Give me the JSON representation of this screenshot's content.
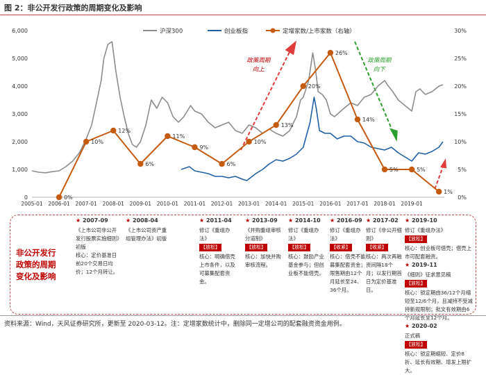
{
  "figure_title": "图 2：非公开发行政策的周期变化及影响",
  "chart_data": {
    "type": "line",
    "x_ticks": [
      "2005-01",
      "2006-01",
      "2007-01",
      "2008-01",
      "2009-01",
      "2010-01",
      "2011-01",
      "2012-01",
      "2013-01",
      "2014-01",
      "2015-01",
      "2016-01",
      "2017-01",
      "2018-01",
      "2019-01"
    ],
    "y_left": {
      "range": [
        0,
        6000
      ],
      "ticks": [
        "0",
        "1,000",
        "2,000",
        "3,000",
        "4,000",
        "5,000",
        "6,000"
      ]
    },
    "y_right": {
      "range": [
        0,
        30
      ],
      "ticks": [
        "0%",
        "5%",
        "10%",
        "15%",
        "20%",
        "25%",
        "30%"
      ]
    },
    "legend": [
      "沪深300",
      "创业板指",
      "定增家数/上市家数（右轴）"
    ],
    "series": [
      {
        "name": "沪深300",
        "axis": "left",
        "color": "#8c8c8c",
        "x": [
          2005.0,
          2005.25,
          2005.5,
          2005.75,
          2006.0,
          2006.25,
          2006.5,
          2006.75,
          2007.0,
          2007.2,
          2007.4,
          2007.55,
          2007.65,
          2007.8,
          2007.95,
          2008.1,
          2008.25,
          2008.4,
          2008.55,
          2008.7,
          2008.85,
          2009.0,
          2009.2,
          2009.4,
          2009.6,
          2009.8,
          2010.0,
          2010.2,
          2010.4,
          2010.6,
          2010.85,
          2011.0,
          2011.25,
          2011.5,
          2011.75,
          2012.0,
          2012.25,
          2012.5,
          2012.75,
          2013.0,
          2013.25,
          2013.5,
          2013.75,
          2014.0,
          2014.25,
          2014.5,
          2014.75,
          2014.9,
          2015.0,
          2015.2,
          2015.35,
          2015.45,
          2015.55,
          2015.7,
          2015.85,
          2016.0,
          2016.15,
          2016.5,
          2016.75,
          2017.0,
          2017.25,
          2017.5,
          2017.75,
          2018.0,
          2018.1,
          2018.3,
          2018.5,
          2018.75,
          2019.0,
          2019.15,
          2019.3,
          2019.5,
          2019.75,
          2020.0,
          2020.15
        ],
        "y": [
          950,
          900,
          880,
          920,
          950,
          1100,
          1300,
          1600,
          2100,
          2600,
          3500,
          4200,
          5000,
          5500,
          5600,
          4500,
          3600,
          2900,
          2300,
          1900,
          1800,
          2000,
          2600,
          3500,
          3200,
          3600,
          3400,
          2900,
          2700,
          2900,
          3300,
          3100,
          3000,
          2700,
          2500,
          2600,
          2700,
          2400,
          2300,
          2600,
          2500,
          2300,
          2450,
          2300,
          2200,
          2400,
          2900,
          3500,
          3600,
          4200,
          5200,
          4600,
          3800,
          3700,
          3500,
          3000,
          2900,
          3200,
          3400,
          3300,
          3600,
          3700,
          4000,
          4200,
          4050,
          3800,
          3500,
          3300,
          3100,
          3800,
          3900,
          3700,
          3800,
          4000,
          4050
        ]
      },
      {
        "name": "创业板指",
        "axis": "left",
        "color": "#1f5fa8",
        "x": [
          2010.5,
          2010.8,
          2011.0,
          2011.25,
          2011.5,
          2011.75,
          2012.0,
          2012.25,
          2012.5,
          2012.75,
          2012.92,
          2013.25,
          2013.5,
          2013.75,
          2014.0,
          2014.25,
          2014.5,
          2014.75,
          2015.0,
          2015.25,
          2015.4,
          2015.48,
          2015.6,
          2015.8,
          2016.0,
          2016.25,
          2016.5,
          2016.75,
          2017.0,
          2017.25,
          2017.5,
          2017.75,
          2018.0,
          2018.25,
          2018.5,
          2018.75,
          2019.0,
          2019.25,
          2019.5,
          2019.75,
          2020.0,
          2020.15
        ],
        "y": [
          1000,
          1100,
          950,
          900,
          850,
          750,
          750,
          700,
          750,
          650,
          600,
          850,
          1000,
          1200,
          1350,
          1300,
          1400,
          1550,
          1800,
          2700,
          3600,
          3200,
          2400,
          2300,
          2300,
          2100,
          2200,
          2200,
          2000,
          1950,
          1800,
          1750,
          1700,
          1800,
          1600,
          1450,
          1300,
          1600,
          1550,
          1650,
          1800,
          2000
        ]
      },
      {
        "name": "定增家数/上市家数（右轴）",
        "axis": "right",
        "color": "#c55a11",
        "x": [
          2006,
          2007,
          2008,
          2009,
          2010,
          2011,
          2012,
          2013,
          2014,
          2015,
          2016,
          2017,
          2018,
          2019,
          2020
        ],
        "y": [
          0,
          10,
          12,
          6,
          11,
          9,
          6,
          10,
          13,
          20,
          26,
          14,
          5,
          5,
          1
        ],
        "labels": [
          "0%",
          "10%",
          "12%",
          "6%",
          "11%",
          "9%",
          "6%",
          "10%",
          "13%",
          "20%",
          "26%",
          "14%",
          "5%",
          "5%",
          "1%"
        ]
      }
    ],
    "annotations": [
      "政策周期\n向上",
      "政策周期\n向下"
    ]
  },
  "policy_panel": {
    "title": "非公开发行政策的周期变化及影响",
    "columns": [
      {
        "date": "2007-09",
        "name": "《上市公司非公开发行股票实施细则》初版",
        "tag": "",
        "core": "核心：定价基准日前20个交易日均价；12个月转让。"
      },
      {
        "date": "2008-04",
        "name": "《上市公司资产重组管理办法》初版",
        "tag": "",
        "core": ""
      },
      {
        "date": "2011-04",
        "name": "修订《重组办法》",
        "tag": "放松",
        "core": "核心：明确借壳上市条件，以及可募集配套资金。"
      },
      {
        "date": "2013-09",
        "name": "《并购重组审核分道制》",
        "tag": "放松",
        "core": "核心：加快并购审核流程。"
      },
      {
        "date": "2014-10",
        "name": "修订《重组办法》",
        "tag": "放松",
        "core": "核心：鼓励产业基金参与；但创业板不能借壳。"
      },
      {
        "date": "2016-09",
        "name": "修订《重组办法》",
        "tag": "收紧",
        "core": "核心：借壳不能募集配套资金；限售期由12个月延长至24、36个月。"
      },
      {
        "date": "2017-02",
        "name": "修订《非公开细则》",
        "tag": "收紧",
        "core": "核心：两次再融资间隔18个月；以发行期首日为定价基准日。"
      }
    ],
    "last_column": [
      {
        "date": "2019-10",
        "name": "修订《重组办法》",
        "tag": "放松",
        "core": "核心：创业板可借壳；借壳上市可配套融资。"
      },
      {
        "date": "2019-11",
        "name": "《细则》征求意见稿",
        "tag": "放松",
        "core": "核心：锁定期由36/12个月缩短至12/6个月，且减持不受减持新规限制；批文有效期由6个月延长至12个月。"
      },
      {
        "date": "2020-02",
        "name": "正式稿",
        "tag": "放松",
        "core": "核心：锁定期缩短、定价8折、延长有效期、增发上限扩大。"
      }
    ]
  },
  "footer": "资料来源：Wind，天风证券研究所，更新至 2020-03-12。注：定增家数统计中，删除同一定增公司的配套融资资金用例。"
}
